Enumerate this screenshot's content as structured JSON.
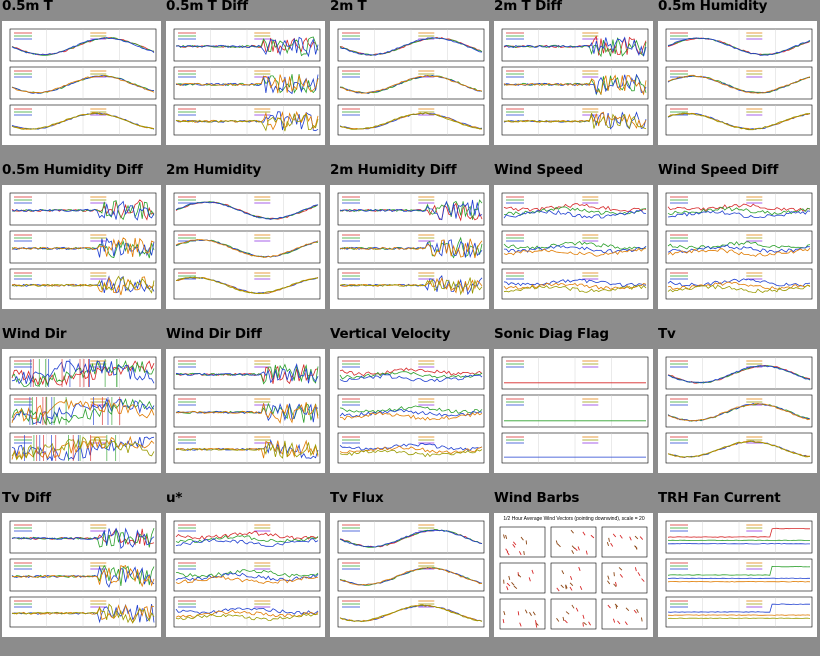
{
  "tiles": [
    {
      "title": "0.5m T",
      "style": "temp"
    },
    {
      "title": "0.5m T Diff",
      "style": "diff"
    },
    {
      "title": "2m T",
      "style": "temp"
    },
    {
      "title": "2m T Diff",
      "style": "diff"
    },
    {
      "title": "0.5m Humidity",
      "style": "hum"
    },
    {
      "title": "0.5m Humidity Diff",
      "style": "diff"
    },
    {
      "title": "2m Humidity",
      "style": "hum"
    },
    {
      "title": "2m Humidity Diff",
      "style": "diff"
    },
    {
      "title": "Wind Speed",
      "style": "flat"
    },
    {
      "title": "Wind Speed Diff",
      "style": "flat"
    },
    {
      "title": "Wind Dir",
      "style": "winddir"
    },
    {
      "title": "Wind Dir Diff",
      "style": "diff"
    },
    {
      "title": "Vertical Velocity",
      "style": "flat"
    },
    {
      "title": "Sonic Diag Flag",
      "style": "flag"
    },
    {
      "title": "Tv",
      "style": "temp"
    },
    {
      "title": "Tv Diff",
      "style": "diff"
    },
    {
      "title": "u*",
      "style": "flat"
    },
    {
      "title": "Tv Flux",
      "style": "temp"
    },
    {
      "title": "Wind Barbs",
      "style": "barbs",
      "header": "1/2 Hour Average Wind Vectors (pointing downwind), scale = 20"
    },
    {
      "title": "TRH Fan Current",
      "style": "fan"
    }
  ],
  "colors": [
    "#d62728",
    "#2ca02c",
    "#1f3fd0",
    "#e07b00",
    "#9a9a00",
    "#8a2be2",
    "#00a0a0",
    "#c0392b"
  ]
}
